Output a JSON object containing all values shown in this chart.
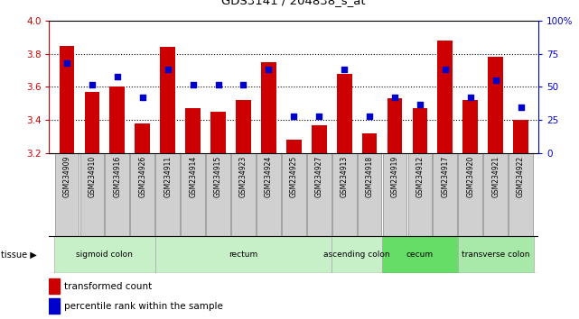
{
  "title": "GDS3141 / 204838_s_at",
  "samples": [
    "GSM234909",
    "GSM234910",
    "GSM234916",
    "GSM234926",
    "GSM234911",
    "GSM234914",
    "GSM234915",
    "GSM234923",
    "GSM234924",
    "GSM234925",
    "GSM234927",
    "GSM234913",
    "GSM234918",
    "GSM234919",
    "GSM234912",
    "GSM234917",
    "GSM234920",
    "GSM234921",
    "GSM234922"
  ],
  "transformed_count": [
    3.85,
    3.57,
    3.6,
    3.38,
    3.84,
    3.47,
    3.45,
    3.52,
    3.75,
    3.28,
    3.37,
    3.68,
    3.32,
    3.53,
    3.47,
    3.88,
    3.52,
    3.78,
    3.4
  ],
  "percentile_rank": [
    68,
    52,
    58,
    42,
    63,
    52,
    52,
    52,
    63,
    28,
    28,
    63,
    28,
    42,
    37,
    63,
    42,
    55,
    35
  ],
  "ymin": 3.2,
  "ymax": 4.0,
  "y2min": 0,
  "y2max": 100,
  "yticks": [
    3.2,
    3.4,
    3.6,
    3.8,
    4.0
  ],
  "y2ticks": [
    0,
    25,
    50,
    75,
    100
  ],
  "bar_color": "#cc0000",
  "dot_color": "#0000cc",
  "tissue_groups": [
    {
      "label": "sigmoid colon",
      "start": 0,
      "end": 4,
      "color": "#c8f0c8"
    },
    {
      "label": "rectum",
      "start": 4,
      "end": 11,
      "color": "#c8f0c8"
    },
    {
      "label": "ascending colon",
      "start": 11,
      "end": 13,
      "color": "#c8f0c8"
    },
    {
      "label": "cecum",
      "start": 13,
      "end": 16,
      "color": "#66dd66"
    },
    {
      "label": "transverse colon",
      "start": 16,
      "end": 19,
      "color": "#a8e8a8"
    }
  ],
  "ylabel_color": "#cc0000",
  "y2label_color": "#0000cc",
  "legend_bar": "transformed count",
  "legend_dot": "percentile rank within the sample",
  "xtick_bg_color": "#d0d0d0",
  "xtick_border_color": "#888888"
}
